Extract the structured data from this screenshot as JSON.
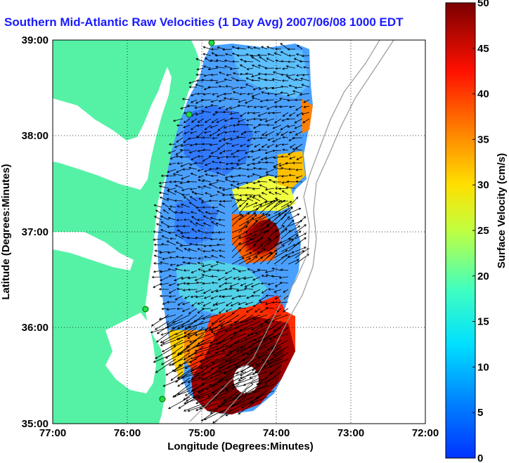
{
  "title": "Southern Mid-Atlantic Raw Velocities (1 Day Avg) 2007/06/08 1000 EDT",
  "xlabel": "Longitude (Degrees:Minutes)",
  "ylabel": "Latitude (Degrees:Minutes)",
  "x_ticks": [
    "77:00",
    "76:00",
    "75:00",
    "74:00",
    "73:00",
    "72:00"
  ],
  "y_ticks": [
    "39:00",
    "38:00",
    "37:00",
    "36:00",
    "35:00"
  ],
  "colorbar": {
    "label": "Surface Velocity (cm/s)",
    "ticks": [
      "0",
      "5",
      "10",
      "15",
      "20",
      "25",
      "30",
      "35",
      "40",
      "45",
      "50"
    ],
    "min": 0,
    "max": 50
  },
  "colors": {
    "land": "#55f2a6",
    "title": "#1a1aff",
    "background": "#ffffff"
  },
  "stations": [
    "station-1",
    "station-2",
    "station-3",
    "station-4"
  ],
  "chart_data": {
    "type": "heatmap",
    "xlim": [
      -77,
      -72
    ],
    "ylim": [
      35,
      39
    ],
    "xlabel": "Longitude (Degrees:Minutes)",
    "ylabel": "Latitude (Degrees:Minutes)",
    "colorbar_range": [
      0,
      50
    ],
    "grid": true
  }
}
